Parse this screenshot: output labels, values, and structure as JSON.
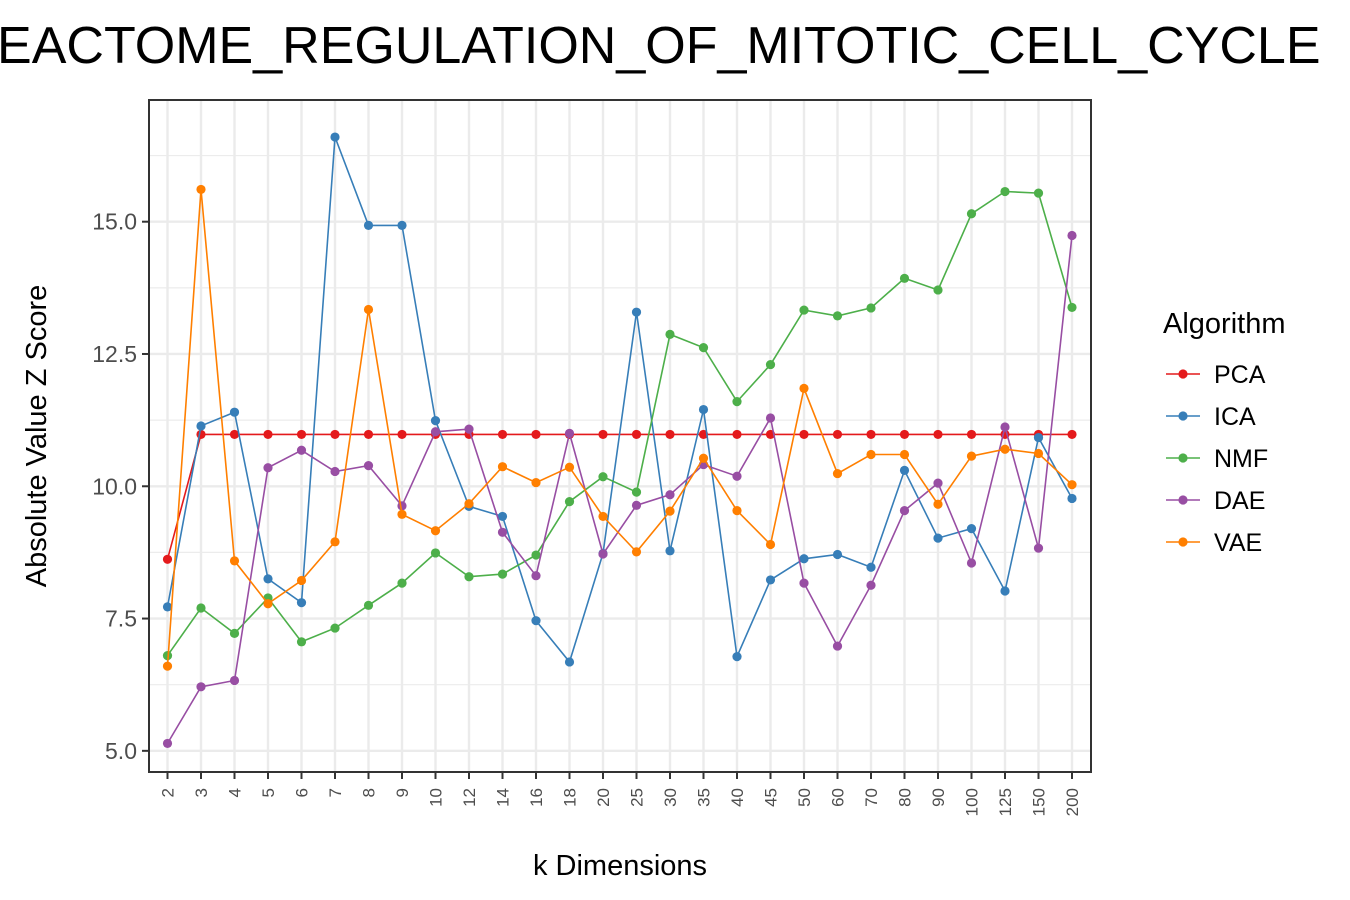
{
  "chart_data": {
    "type": "line",
    "title": "REACTOME_REGULATION_OF_MITOTIC_CELL_CYCLE",
    "xlabel": "k Dimensions",
    "ylabel": "Absolute Value Z Score",
    "x": [
      "2",
      "3",
      "4",
      "5",
      "6",
      "7",
      "8",
      "9",
      "10",
      "12",
      "14",
      "16",
      "18",
      "20",
      "25",
      "30",
      "35",
      "40",
      "45",
      "50",
      "60",
      "70",
      "80",
      "90",
      "100",
      "125",
      "150",
      "200"
    ],
    "yticks": [
      5.0,
      7.5,
      10.0,
      12.5,
      15.0
    ],
    "ytick_labels": [
      "5.0",
      "7.5",
      "10.0",
      "12.5",
      "15.0"
    ],
    "ylim": [
      4.6,
      17.3
    ],
    "grid": true,
    "legend": {
      "title": "Algorithm",
      "position": "right"
    },
    "series": [
      {
        "name": "PCA",
        "color": "#e41a1c",
        "values": [
          8.62,
          10.98,
          10.98,
          10.98,
          10.98,
          10.98,
          10.98,
          10.98,
          10.98,
          10.98,
          10.98,
          10.98,
          10.98,
          10.98,
          10.98,
          10.98,
          10.98,
          10.98,
          10.98,
          10.98,
          10.98,
          10.98,
          10.98,
          10.98,
          10.98,
          10.98,
          10.98,
          10.98
        ]
      },
      {
        "name": "ICA",
        "color": "#377eb8",
        "values": [
          7.72,
          11.14,
          11.4,
          8.25,
          7.8,
          16.6,
          14.93,
          14.93,
          11.24,
          9.62,
          9.43,
          7.46,
          6.68,
          8.73,
          13.29,
          8.78,
          11.45,
          6.78,
          8.23,
          8.63,
          8.71,
          8.47,
          10.3,
          9.02,
          9.2,
          8.02,
          10.92,
          9.77
        ]
      },
      {
        "name": "NMF",
        "color": "#4daf4a",
        "values": [
          6.8,
          7.7,
          7.22,
          7.89,
          7.06,
          7.32,
          7.75,
          8.17,
          8.74,
          8.29,
          8.34,
          8.7,
          9.71,
          10.18,
          9.89,
          12.87,
          12.62,
          11.6,
          12.3,
          13.33,
          13.22,
          13.37,
          13.93,
          13.71,
          15.15,
          15.57,
          15.54,
          13.38
        ]
      },
      {
        "name": "DAE",
        "color": "#984ea3",
        "values": [
          5.14,
          6.21,
          6.33,
          10.35,
          10.68,
          10.28,
          10.39,
          9.63,
          11.03,
          11.08,
          9.13,
          8.31,
          11.0,
          8.72,
          9.64,
          9.84,
          10.41,
          10.19,
          11.29,
          8.17,
          6.98,
          8.13,
          9.54,
          10.06,
          8.55,
          11.12,
          8.83,
          14.74
        ]
      },
      {
        "name": "VAE",
        "color": "#ff7f00",
        "values": [
          6.6,
          15.61,
          8.59,
          7.78,
          8.22,
          8.95,
          13.34,
          9.47,
          9.16,
          9.67,
          10.37,
          10.07,
          10.36,
          9.43,
          8.76,
          9.53,
          10.53,
          9.54,
          8.9,
          11.85,
          10.24,
          10.6,
          10.6,
          9.66,
          10.57,
          10.7,
          10.62,
          10.03
        ]
      }
    ]
  }
}
